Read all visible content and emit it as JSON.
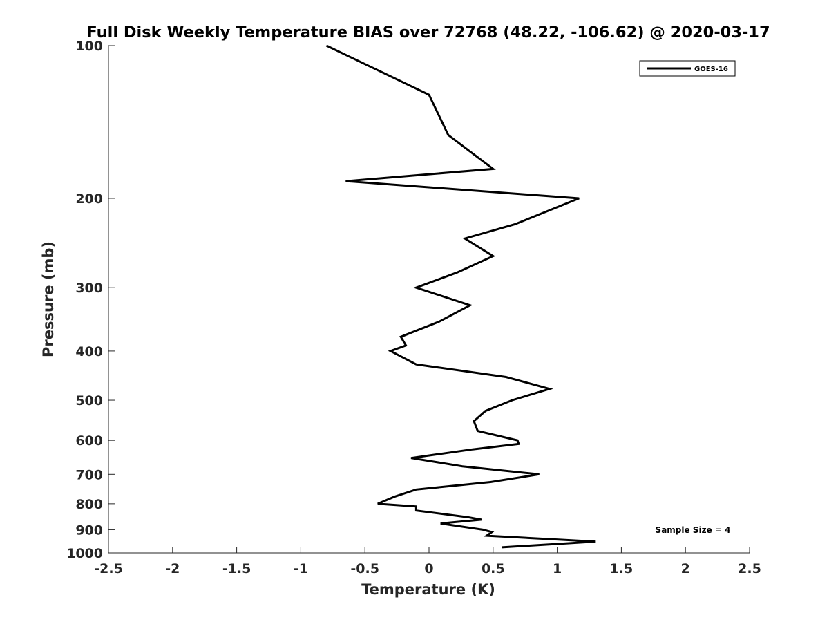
{
  "chart_data": {
    "type": "line",
    "title": "Full Disk Weekly Temperature BIAS over 72768 (48.22, -106.62) @ 2020-03-17",
    "xlabel": "Temperature (K)",
    "ylabel": "Pressure (mb)",
    "xlim": [
      -2.5,
      2.5
    ],
    "ylim": [
      100,
      1000
    ],
    "y_scale": "log",
    "y_reversed": true,
    "x_ticks": [
      -2.5,
      -2,
      -1.5,
      -1,
      -0.5,
      0,
      0.5,
      1,
      1.5,
      2,
      2.5
    ],
    "x_tick_labels": [
      "-2.5",
      "-2",
      "-1.5",
      "-1",
      "-0.5",
      "0",
      "0.5",
      "1",
      "1.5",
      "2",
      "2.5"
    ],
    "y_ticks": [
      100,
      200,
      300,
      400,
      500,
      600,
      700,
      800,
      900,
      1000
    ],
    "y_tick_labels": [
      "100",
      "200",
      "300",
      "400",
      "500",
      "600",
      "700",
      "800",
      "900",
      "1000"
    ],
    "grid": false,
    "legend_position": "top-right",
    "series": [
      {
        "name": "GOES-16",
        "color": "#000000",
        "temperature": [
          -0.8,
          0.0,
          0.15,
          0.5,
          -0.65,
          1.17,
          0.67,
          0.28,
          0.5,
          0.22,
          -0.1,
          0.32,
          0.08,
          -0.22,
          -0.18,
          -0.3,
          -0.1,
          0.6,
          0.94,
          0.65,
          0.44,
          0.35,
          0.38,
          0.69,
          0.7,
          0.34,
          -0.14,
          0.26,
          0.86,
          0.48,
          -0.1,
          -0.27,
          -0.4,
          -0.1,
          -0.1,
          0.3,
          0.41,
          0.09,
          0.42,
          0.49,
          0.45,
          1.3,
          0.57
        ],
        "pressure": [
          100,
          125,
          150,
          175,
          185,
          200,
          225,
          240,
          260,
          280,
          300,
          325,
          350,
          375,
          390,
          400,
          425,
          450,
          475,
          500,
          525,
          550,
          575,
          600,
          610,
          625,
          650,
          675,
          700,
          725,
          750,
          775,
          800,
          810,
          825,
          850,
          860,
          875,
          900,
          910,
          925,
          950,
          975
        ]
      }
    ],
    "annotations": [
      "Sample Size = 4"
    ]
  }
}
